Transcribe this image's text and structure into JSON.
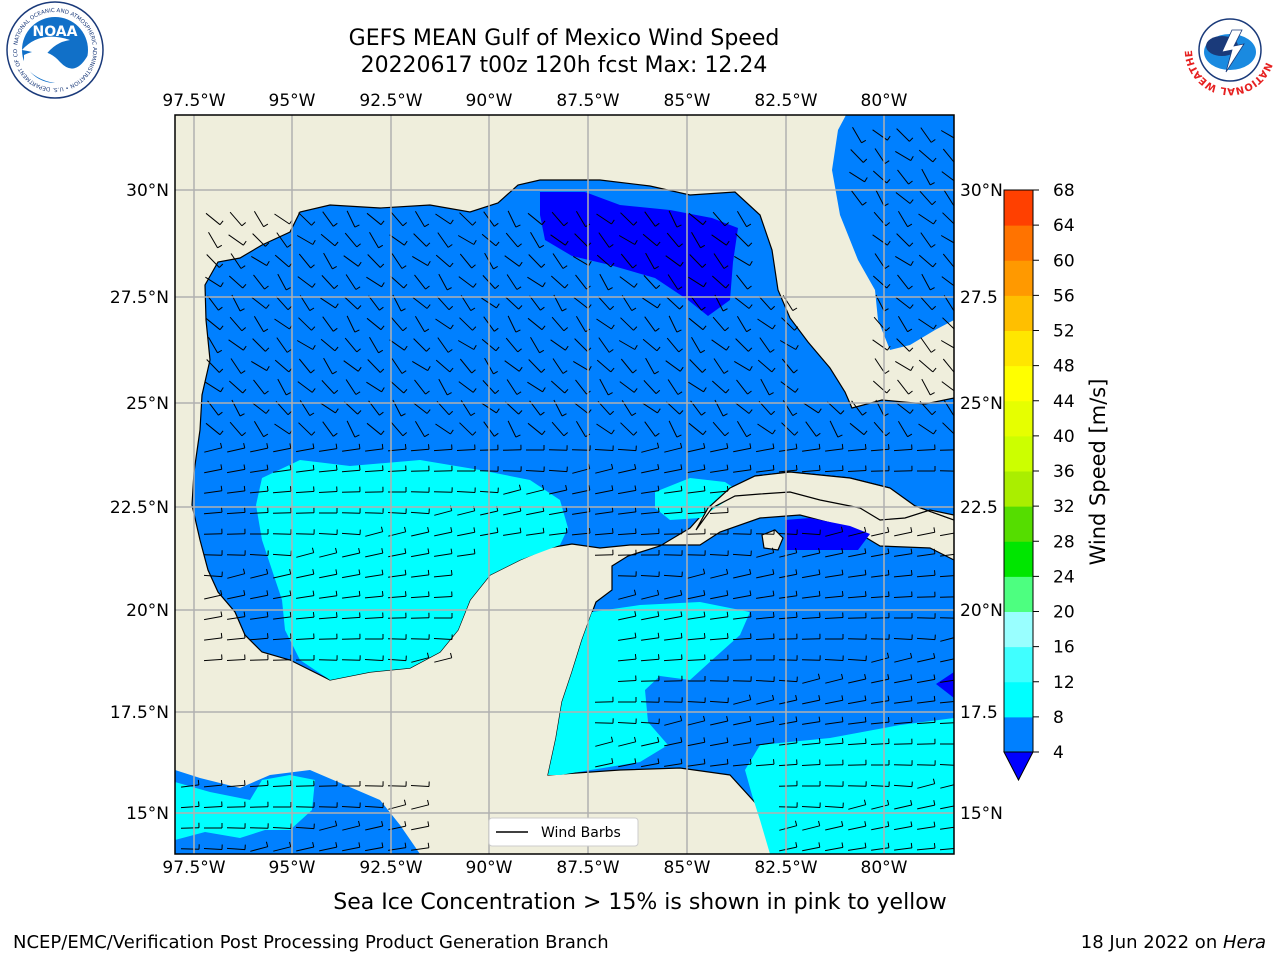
{
  "title_line1": "GEFS MEAN Gulf of Mexico Wind Speed",
  "title_line2": "20220617 t00z 120h fcst   Max: 12.24",
  "subtitle": "Sea Ice Concentration > 15% is shown in pink to yellow",
  "footer_left": "NCEP/EMC/Verification Post Processing Product Generation Branch",
  "footer_right_date": "18 Jun 2022 on ",
  "footer_right_host": "Hera",
  "legend_label": "Wind Barbs",
  "colorbar": {
    "label": "Wind Speed [m/s]",
    "ticks": [
      "4",
      "8",
      "12",
      "16",
      "20",
      "24",
      "28",
      "32",
      "36",
      "40",
      "44",
      "48",
      "52",
      "56",
      "60",
      "64",
      "68"
    ],
    "colors": [
      "#0080ff",
      "#00ffff",
      "#40ffff",
      "#99ffff",
      "#4dff80",
      "#00e600",
      "#55dd00",
      "#aaee00",
      "#ccff00",
      "#e6ff00",
      "#ffff00",
      "#ffe600",
      "#ffbf00",
      "#ff9900",
      "#ff7300",
      "#ff4000"
    ],
    "under_color": "#0000ff"
  },
  "lon_labels": [
    "97.5°W",
    "95°W",
    "92.5°W",
    "90°W",
    "87.5°W",
    "85°W",
    "82.5°W",
    "80°W"
  ],
  "lat_labels_left": [
    "30°N",
    "27.5°N",
    "25°N",
    "22.5°N",
    "20°N",
    "17.5°N",
    "15°N"
  ],
  "lat_labels_right": [
    "30°N",
    "27.5",
    "25°N",
    "22.5",
    "20°N",
    "17.5",
    "15°N"
  ],
  "logos": {
    "noaa_text": "NOAA",
    "noaa_ring": "NATIONAL OCEANIC AND ATMOSPHERIC ADMINISTRATION • U.S. DEPARTMENT OF COMMERCE",
    "nws_ring": "NATIONAL WEATHER SERVICE"
  },
  "colors": {
    "land": "#efeedc",
    "wind_4_8": "#0080ff",
    "wind_8_12": "#00ffff",
    "wind_under_4": "#0000ff",
    "grid": "#b0b0b0"
  }
}
